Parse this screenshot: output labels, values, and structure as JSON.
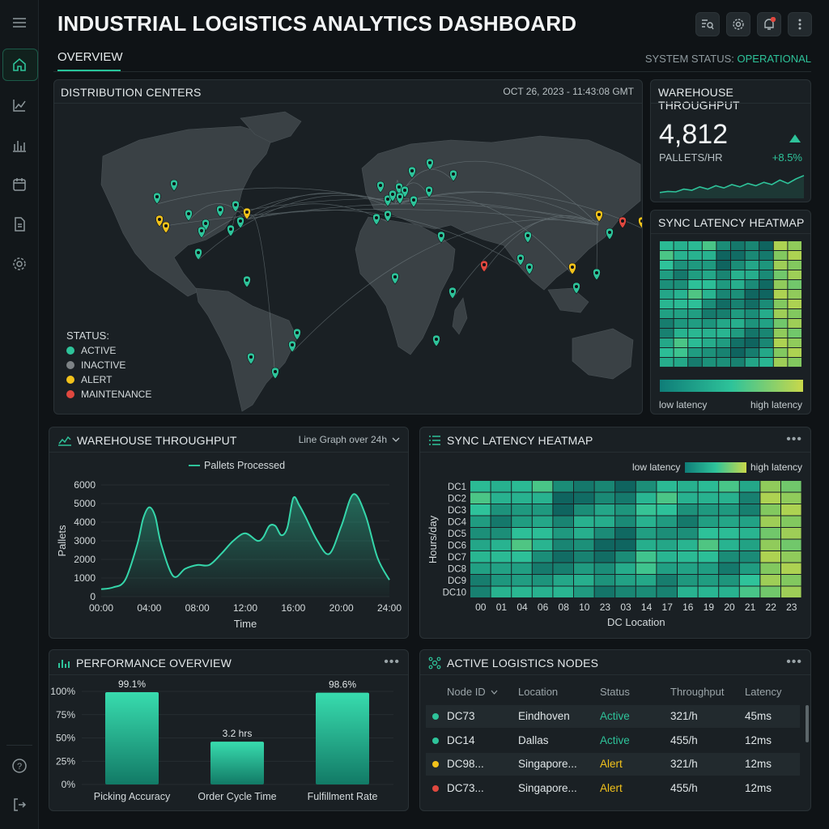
{
  "app": {
    "title": "INDUSTRIAL LOGISTICS ANALYTICS DASHBOARD",
    "tab": "OVERVIEW",
    "status_label": "SYSTEM STATUS:",
    "status_value": "OPERATIONAL"
  },
  "sidebar": {
    "icons": [
      "menu-icon",
      "home-icon",
      "trend-icon",
      "bar-chart-icon",
      "calendar-icon",
      "report-icon",
      "settings-icon",
      "help-icon",
      "logout-icon"
    ]
  },
  "map": {
    "title": "DISTRIBUTION CENTERS",
    "timestamp": "OCT 26, 2023 - 11:43:08 GMT",
    "legend_title": "STATUS:",
    "legend": [
      {
        "label": "ACTIVE",
        "color": "#2ec39a"
      },
      {
        "label": "INACTIVE",
        "color": "#7d8386"
      },
      {
        "label": "ALERT",
        "color": "#f2c21b"
      },
      {
        "label": "MAINTENANCE",
        "color": "#e0483f"
      }
    ]
  },
  "throughput_kpi": {
    "title": "WAREHOUSE THROUGHPUT",
    "value": "4,812",
    "unit": "PALLETS/HR",
    "change": "+8.5%",
    "spark": [
      0.15,
      0.2,
      0.18,
      0.3,
      0.25,
      0.4,
      0.3,
      0.45,
      0.35,
      0.5,
      0.4,
      0.55,
      0.45,
      0.6,
      0.5,
      0.7,
      0.55,
      0.75,
      0.9
    ]
  },
  "heatmap_small": {
    "title": "SYNC LATENCY HEATMAP",
    "low": "low latency",
    "high": "high latency"
  },
  "throughput_chart": {
    "title": "WAREHOUSE THROUGHPUT",
    "selector": "Line Graph over 24h",
    "legend": "Pallets Processed",
    "ylabel": "Pallets",
    "xlabel": "Time",
    "yticks": [
      "6000",
      "5000",
      "4000",
      "3000",
      "2000",
      "1000",
      "0"
    ],
    "xticks": [
      "00:00",
      "04:00",
      "08:00",
      "12:00",
      "16:00",
      "20:00",
      "24:00"
    ]
  },
  "chart_data": [
    {
      "type": "area",
      "title": "WAREHOUSE THROUGHPUT",
      "xlabel": "Time",
      "ylabel": "Pallets",
      "ylim": [
        0,
        6000
      ],
      "xlim": [
        0,
        24
      ],
      "series": [
        {
          "name": "Pallets Processed",
          "x": [
            0,
            1,
            2,
            3,
            3.5,
            4,
            4.5,
            5,
            6,
            7,
            8,
            9,
            10,
            11,
            12,
            13,
            13.5,
            14,
            14.5,
            15,
            15.5,
            16,
            16.5,
            17,
            18,
            19,
            20,
            21,
            22,
            23,
            24
          ],
          "y": [
            400,
            500,
            900,
            2800,
            4200,
            4800,
            4300,
            2800,
            1100,
            1500,
            1700,
            1700,
            2300,
            3000,
            3400,
            3000,
            3200,
            3800,
            3800,
            3300,
            3700,
            5300,
            4900,
            4300,
            3000,
            2300,
            3800,
            5500,
            4400,
            2100,
            900
          ]
        }
      ]
    },
    {
      "type": "bar",
      "title": "PERFORMANCE OVERVIEW",
      "categories": [
        "Picking Accuracy",
        "Order Cycle Time",
        "Fulfillment Rate"
      ],
      "values": [
        99.1,
        46,
        98.6
      ],
      "value_labels": [
        "99.1%",
        "3.2 hrs",
        "98.6%"
      ],
      "yticks": [
        "100%",
        "75%",
        "50%",
        "25%",
        "0%"
      ],
      "ylim": [
        0,
        100
      ]
    },
    {
      "type": "heatmap",
      "title": "SYNC LATENCY HEATMAP",
      "ylabel": "Hours/day",
      "xlabel": "DC Location",
      "rows": [
        "DC1",
        "DC2",
        "DC3",
        "DC4",
        "DC5",
        "DC6",
        "DC7",
        "DC8",
        "DC9",
        "DC10"
      ],
      "cols": [
        "00",
        "01",
        "04",
        "06",
        "08",
        "10",
        "23",
        "03",
        "14",
        "17",
        "16",
        "19",
        "20",
        "21",
        "22",
        "23"
      ]
    }
  ],
  "heatmap_large": {
    "title": "SYNC LATENCY HEATMAP",
    "low": "low latency",
    "high": "high latency"
  },
  "performance": {
    "title": "PERFORMANCE OVERVIEW"
  },
  "nodes": {
    "title": "ACTIVE LOGISTICS NODES",
    "columns": [
      "Node ID",
      "Location",
      "Status",
      "Throughput",
      "Latency"
    ],
    "rows": [
      {
        "id": "DC73",
        "location": "Eindhoven",
        "status": "Active",
        "throughput": "321/h",
        "latency": "45ms",
        "dot": "#2ec39a",
        "status_color": "#2ec39a"
      },
      {
        "id": "DC14",
        "location": "Dallas",
        "status": "Active",
        "throughput": "455/h",
        "latency": "12ms",
        "dot": "#2ec39a",
        "status_color": "#2ec39a"
      },
      {
        "id": "DC98...",
        "location": "Singapore...",
        "status": "Alert",
        "throughput": "321/h",
        "latency": "12ms",
        "dot": "#f2c21b",
        "status_color": "#f2c21b"
      },
      {
        "id": "DC73...",
        "location": "Singapore...",
        "status": "Alert",
        "throughput": "455/h",
        "latency": "12ms",
        "dot": "#e0483f",
        "status_color": "#f2c21b"
      }
    ]
  }
}
